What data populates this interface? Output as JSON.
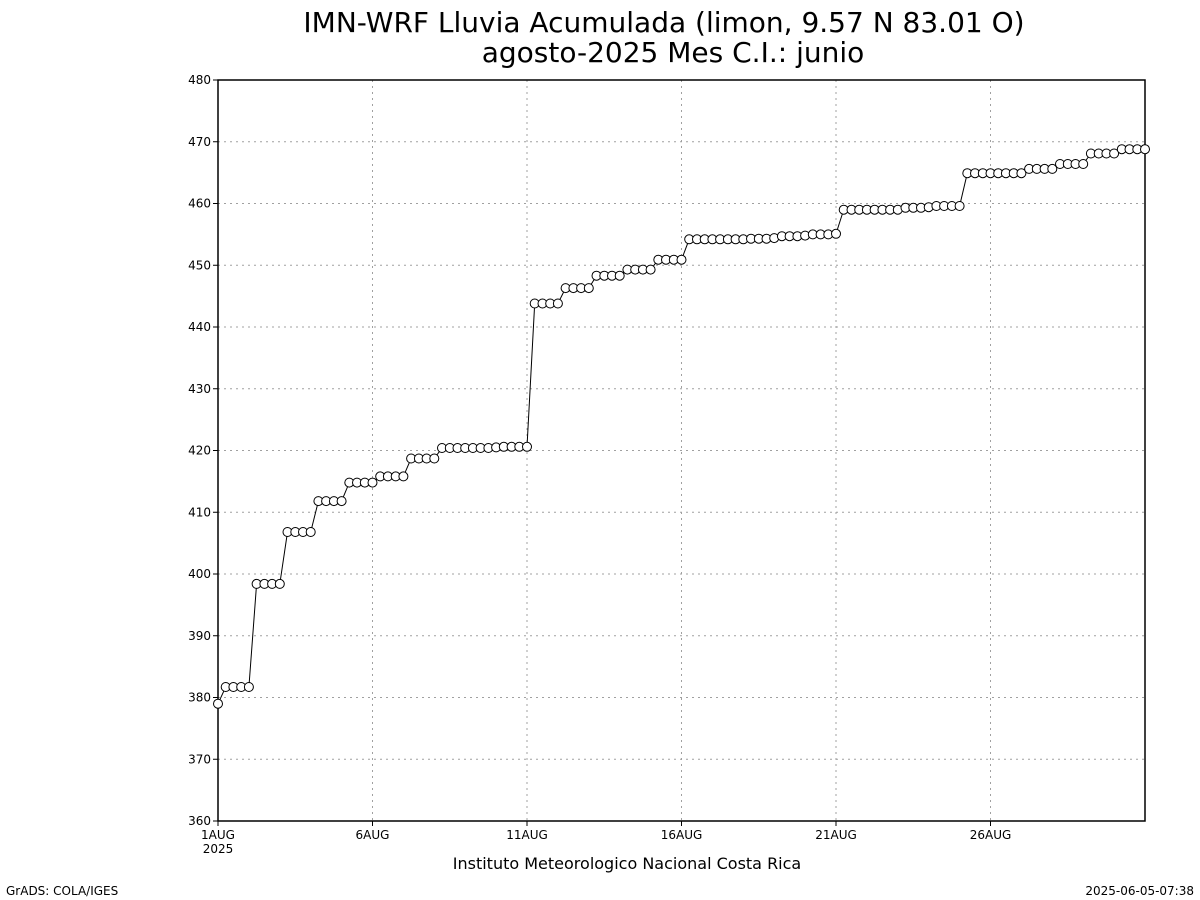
{
  "chart_data": {
    "type": "line",
    "title_line1": "IMN-WRF  Lluvia Acumulada (limon, 9.57  N 83.01  O)",
    "title_line2": "agosto-2025 Mes C.I.: junio",
    "xlabel": "Instituto Meteorologico Nacional Costa Rica",
    "ylabel": "",
    "xlim": [
      "2025-08-01T00:00",
      "2025-08-31T00:00"
    ],
    "ylim": [
      360,
      480
    ],
    "y_ticks": [
      360,
      370,
      380,
      390,
      400,
      410,
      420,
      430,
      440,
      450,
      460,
      470,
      480
    ],
    "x_ticks": [
      {
        "date": "2025-08-01T00:00",
        "label": "1AUG",
        "sublabel": "2025"
      },
      {
        "date": "2025-08-06T00:00",
        "label": "6AUG"
      },
      {
        "date": "2025-08-11T00:00",
        "label": "11AUG"
      },
      {
        "date": "2025-08-16T00:00",
        "label": "16AUG"
      },
      {
        "date": "2025-08-21T00:00",
        "label": "21AUG"
      },
      {
        "date": "2025-08-26T00:00",
        "label": "26AUG"
      }
    ],
    "grid": true,
    "marker": "open-circle",
    "series": [
      {
        "x": [
          "2025-08-01T00:00",
          "2025-08-01T06:00",
          "2025-08-01T12:00",
          "2025-08-01T18:00",
          "2025-08-02T00:00",
          "2025-08-02T06:00",
          "2025-08-02T12:00",
          "2025-08-02T18:00",
          "2025-08-03T00:00",
          "2025-08-03T06:00",
          "2025-08-03T12:00",
          "2025-08-03T18:00",
          "2025-08-04T00:00",
          "2025-08-04T06:00",
          "2025-08-04T12:00",
          "2025-08-04T18:00",
          "2025-08-05T00:00",
          "2025-08-05T06:00",
          "2025-08-05T12:00",
          "2025-08-05T18:00",
          "2025-08-06T00:00",
          "2025-08-06T06:00",
          "2025-08-06T12:00",
          "2025-08-06T18:00",
          "2025-08-07T00:00",
          "2025-08-07T06:00",
          "2025-08-07T12:00",
          "2025-08-07T18:00",
          "2025-08-08T00:00",
          "2025-08-08T06:00",
          "2025-08-08T12:00",
          "2025-08-08T18:00",
          "2025-08-09T00:00",
          "2025-08-09T06:00",
          "2025-08-09T12:00",
          "2025-08-09T18:00",
          "2025-08-10T00:00",
          "2025-08-10T06:00",
          "2025-08-10T12:00",
          "2025-08-10T18:00",
          "2025-08-11T00:00",
          "2025-08-11T06:00",
          "2025-08-11T12:00",
          "2025-08-11T18:00",
          "2025-08-12T00:00",
          "2025-08-12T06:00",
          "2025-08-12T12:00",
          "2025-08-12T18:00",
          "2025-08-13T00:00",
          "2025-08-13T06:00",
          "2025-08-13T12:00",
          "2025-08-13T18:00",
          "2025-08-14T00:00",
          "2025-08-14T06:00",
          "2025-08-14T12:00",
          "2025-08-14T18:00",
          "2025-08-15T00:00",
          "2025-08-15T06:00",
          "2025-08-15T12:00",
          "2025-08-15T18:00",
          "2025-08-16T00:00",
          "2025-08-16T06:00",
          "2025-08-16T12:00",
          "2025-08-16T18:00",
          "2025-08-17T00:00",
          "2025-08-17T06:00",
          "2025-08-17T12:00",
          "2025-08-17T18:00",
          "2025-08-18T00:00",
          "2025-08-18T06:00",
          "2025-08-18T12:00",
          "2025-08-18T18:00",
          "2025-08-19T00:00",
          "2025-08-19T06:00",
          "2025-08-19T12:00",
          "2025-08-19T18:00",
          "2025-08-20T00:00",
          "2025-08-20T06:00",
          "2025-08-20T12:00",
          "2025-08-20T18:00",
          "2025-08-21T00:00",
          "2025-08-21T06:00",
          "2025-08-21T12:00",
          "2025-08-21T18:00",
          "2025-08-22T00:00",
          "2025-08-22T06:00",
          "2025-08-22T12:00",
          "2025-08-22T18:00",
          "2025-08-23T00:00",
          "2025-08-23T06:00",
          "2025-08-23T12:00",
          "2025-08-23T18:00",
          "2025-08-24T00:00",
          "2025-08-24T06:00",
          "2025-08-24T12:00",
          "2025-08-24T18:00",
          "2025-08-25T00:00",
          "2025-08-25T06:00",
          "2025-08-25T12:00",
          "2025-08-25T18:00",
          "2025-08-26T00:00",
          "2025-08-26T06:00",
          "2025-08-26T12:00",
          "2025-08-26T18:00",
          "2025-08-27T00:00",
          "2025-08-27T06:00",
          "2025-08-27T12:00",
          "2025-08-27T18:00",
          "2025-08-28T00:00",
          "2025-08-28T06:00",
          "2025-08-28T12:00",
          "2025-08-28T18:00",
          "2025-08-29T00:00",
          "2025-08-29T06:00",
          "2025-08-29T12:00",
          "2025-08-29T18:00",
          "2025-08-30T00:00",
          "2025-08-30T06:00",
          "2025-08-30T12:00",
          "2025-08-30T18:00",
          "2025-08-31T00:00"
        ],
        "values": [
          379,
          381.7,
          381.7,
          381.7,
          381.7,
          398.4,
          398.4,
          398.4,
          398.4,
          406.8,
          406.8,
          406.8,
          406.8,
          411.8,
          411.8,
          411.8,
          411.8,
          414.8,
          414.8,
          414.8,
          414.8,
          415.8,
          415.8,
          415.8,
          415.8,
          418.7,
          418.7,
          418.7,
          418.7,
          420.4,
          420.4,
          420.4,
          420.4,
          420.4,
          420.4,
          420.4,
          420.5,
          420.6,
          420.6,
          420.6,
          420.6,
          443.8,
          443.8,
          443.8,
          443.8,
          446.3,
          446.3,
          446.3,
          446.3,
          448.3,
          448.3,
          448.3,
          448.3,
          449.3,
          449.3,
          449.3,
          449.3,
          450.9,
          450.9,
          450.9,
          450.9,
          454.2,
          454.2,
          454.2,
          454.2,
          454.2,
          454.2,
          454.2,
          454.2,
          454.3,
          454.3,
          454.3,
          454.4,
          454.7,
          454.7,
          454.7,
          454.8,
          455.0,
          455.0,
          455.0,
          455.1,
          459.0,
          459.0,
          459.0,
          459.0,
          459.0,
          459.0,
          459.0,
          459.0,
          459.3,
          459.3,
          459.3,
          459.4,
          459.6,
          459.6,
          459.6,
          459.6,
          464.9,
          464.9,
          464.9,
          464.9,
          464.9,
          464.9,
          464.9,
          464.9,
          465.6,
          465.6,
          465.6,
          465.6,
          466.4,
          466.4,
          466.4,
          466.4,
          468.1,
          468.1,
          468.1,
          468.1,
          468.8,
          468.8,
          468.8,
          468.8
        ]
      }
    ]
  },
  "footer": {
    "left_credit": "GrADS: COLA/IGES",
    "right_timestamp": "2025-06-05-07:38"
  },
  "colors": {
    "line": "#000000",
    "marker_fill": "#ffffff",
    "grid": "#a0a0a0",
    "axes": "#000000",
    "background": "#ffffff"
  }
}
